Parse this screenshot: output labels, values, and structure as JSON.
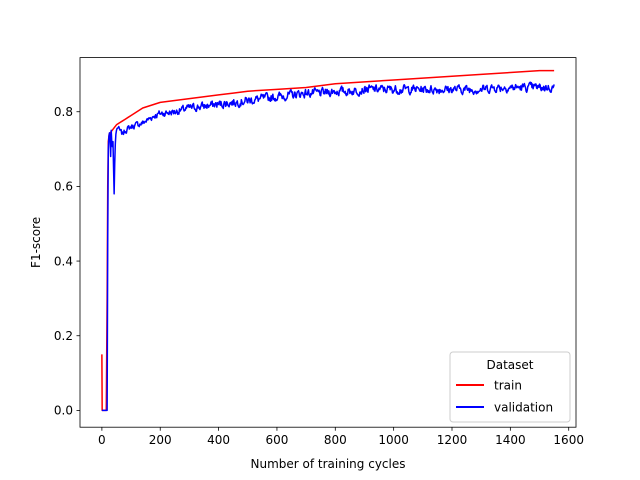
{
  "chart_data": {
    "type": "line",
    "title": "",
    "xlabel": "Number of training cycles",
    "ylabel": "F1-score",
    "xlim": [
      -75,
      1625
    ],
    "ylim": [
      -0.045,
      0.945
    ],
    "xticks": [
      0,
      200,
      400,
      600,
      800,
      1000,
      1200,
      1400,
      1600
    ],
    "xtick_labels": [
      "0",
      "200",
      "400",
      "600",
      "800",
      "1000",
      "1200",
      "1400",
      "1600"
    ],
    "yticks": [
      0.0,
      0.2,
      0.4,
      0.6,
      0.8
    ],
    "ytick_labels": [
      "0.0",
      "0.2",
      "0.4",
      "0.6",
      "0.8"
    ],
    "grid": false,
    "legend": {
      "title": "Dataset",
      "placement": "lower-right"
    },
    "series": [
      {
        "name": "train",
        "color": "#ff0000",
        "x": [
          0,
          1,
          2,
          5,
          10,
          15,
          18,
          20,
          22,
          25,
          30,
          35,
          40,
          45,
          50,
          60,
          70,
          80,
          100,
          120,
          140,
          160,
          180,
          200,
          250,
          300,
          350,
          400,
          450,
          500,
          600,
          700,
          800,
          900,
          1000,
          1100,
          1200,
          1300,
          1400,
          1500,
          1550
        ],
        "y": [
          0.15,
          0.0,
          0.0,
          0.0,
          0.0,
          0.0,
          0.3,
          0.6,
          0.72,
          0.74,
          0.745,
          0.75,
          0.755,
          0.76,
          0.765,
          0.77,
          0.775,
          0.78,
          0.79,
          0.8,
          0.81,
          0.815,
          0.82,
          0.825,
          0.83,
          0.835,
          0.84,
          0.845,
          0.85,
          0.855,
          0.86,
          0.865,
          0.875,
          0.88,
          0.885,
          0.89,
          0.895,
          0.9,
          0.905,
          0.91,
          0.91
        ]
      },
      {
        "name": "validation",
        "color": "#0000ff",
        "x": [
          0,
          10,
          18,
          20,
          22,
          25,
          28,
          30,
          32,
          35,
          38,
          40,
          42,
          45,
          48,
          50,
          55,
          60,
          70,
          80,
          100,
          120,
          140,
          160,
          180,
          200,
          250,
          300,
          350,
          400,
          450,
          500,
          550,
          600,
          650,
          700,
          750,
          800,
          850,
          900,
          950,
          1000,
          1050,
          1100,
          1150,
          1200,
          1250,
          1300,
          1350,
          1400,
          1450,
          1500,
          1550
        ],
        "y": [
          0.0,
          0.0,
          0.0,
          0.45,
          0.7,
          0.75,
          0.73,
          0.68,
          0.75,
          0.7,
          0.72,
          0.65,
          0.58,
          0.7,
          0.74,
          0.75,
          0.76,
          0.75,
          0.74,
          0.75,
          0.76,
          0.765,
          0.77,
          0.78,
          0.79,
          0.795,
          0.8,
          0.81,
          0.815,
          0.82,
          0.825,
          0.83,
          0.835,
          0.84,
          0.845,
          0.85,
          0.85,
          0.855,
          0.855,
          0.86,
          0.86,
          0.86,
          0.86,
          0.86,
          0.86,
          0.86,
          0.86,
          0.86,
          0.865,
          0.865,
          0.865,
          0.865,
          0.865
        ],
        "noise_amplitude": 0.018
      }
    ]
  }
}
